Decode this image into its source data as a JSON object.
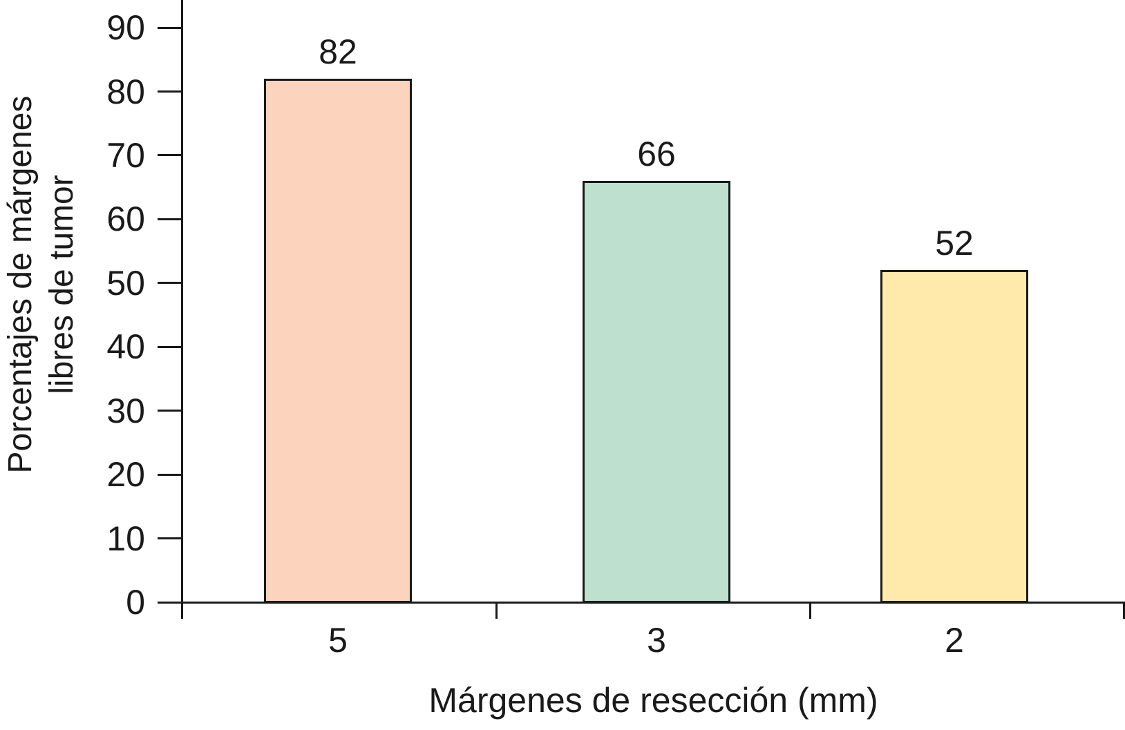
{
  "chart_data": {
    "type": "bar",
    "title": "",
    "categories": [
      "5",
      "3",
      "2"
    ],
    "values": [
      82,
      66,
      52
    ],
    "value_labels": [
      "82",
      "66",
      "52"
    ],
    "bar_colors": [
      "#fcd3bc",
      "#bee0cf",
      "#ffeaac"
    ],
    "bar_border_color": "#1a1a1a",
    "axis_color": "#1a1a1a",
    "xlabel": "Márgenes de resección (mm)",
    "ylabel": "Porcentajes de márgenes libres de tumor",
    "ylabel_line1": "Porcentajes de márgenes",
    "ylabel_line2": "libres de tumor",
    "yticks": [
      "0",
      "10",
      "20",
      "30",
      "40",
      "50",
      "60",
      "70",
      "80",
      "90"
    ],
    "ytick_values": [
      0,
      10,
      20,
      30,
      40,
      50,
      60,
      70,
      80,
      90
    ],
    "ylim": [
      0,
      94
    ],
    "grid": false,
    "legend": null
  }
}
